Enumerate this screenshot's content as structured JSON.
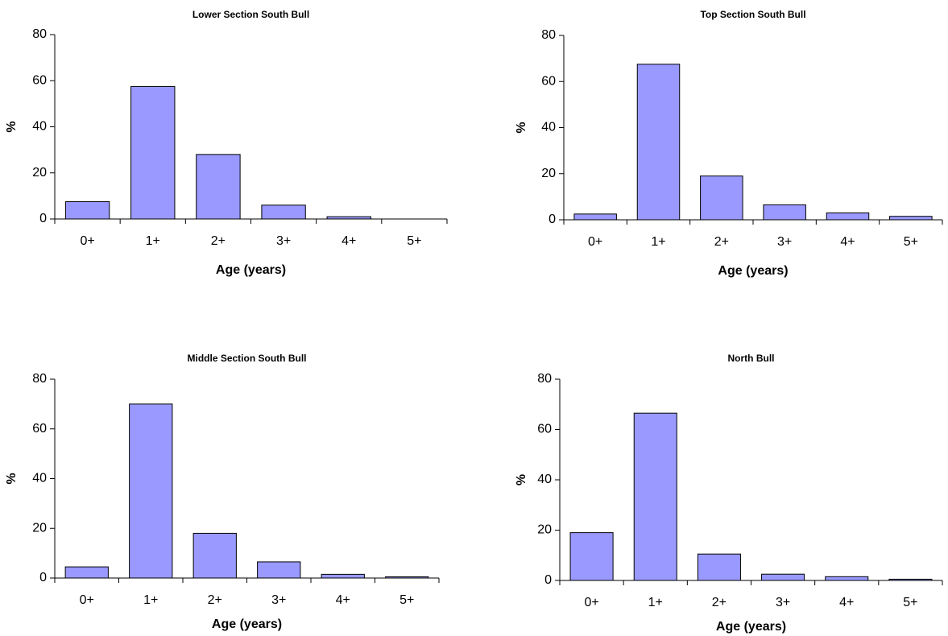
{
  "chart_data": [
    {
      "type": "bar",
      "title": "Lower Section South Bull",
      "x_label": "Age (years)",
      "y_label": "%",
      "categories": [
        "0+",
        "1+",
        "2+",
        "3+",
        "4+",
        "5+"
      ],
      "values": [
        7.5,
        57.5,
        28,
        6,
        1,
        0
      ],
      "color": "#9999ff",
      "ylim": [
        0,
        80
      ],
      "yticks": [
        0,
        20,
        40,
        60,
        80
      ],
      "grid": false
    },
    {
      "type": "bar",
      "title": "Top Section South Bull",
      "x_label": "Age (years)",
      "y_label": "%",
      "categories": [
        "0+",
        "1+",
        "2+",
        "3+",
        "4+",
        "5+"
      ],
      "values": [
        2.5,
        67.5,
        19,
        6.5,
        3,
        1.5
      ],
      "color": "#9999ff",
      "ylim": [
        0,
        80
      ],
      "yticks": [
        0,
        20,
        40,
        60,
        80
      ],
      "grid": false
    },
    {
      "type": "bar",
      "title": "Middle Section South Bull",
      "x_label": "Age (years)",
      "y_label": "%",
      "categories": [
        "0+",
        "1+",
        "2+",
        "3+",
        "4+",
        "5+"
      ],
      "values": [
        4.5,
        70,
        18,
        6.5,
        1.5,
        0.5
      ],
      "color": "#9999ff",
      "ylim": [
        0,
        80
      ],
      "yticks": [
        0,
        20,
        40,
        60,
        80
      ],
      "grid": false
    },
    {
      "type": "bar",
      "title": "North Bull",
      "x_label": "Age (years)",
      "y_label": "%",
      "categories": [
        "0+",
        "1+",
        "2+",
        "3+",
        "4+",
        "5+"
      ],
      "values": [
        19,
        66.5,
        10.5,
        2.5,
        1.5,
        0.5
      ],
      "color": "#9999ff",
      "ylim": [
        0,
        80
      ],
      "yticks": [
        0,
        20,
        40,
        60,
        80
      ],
      "grid": false
    }
  ]
}
